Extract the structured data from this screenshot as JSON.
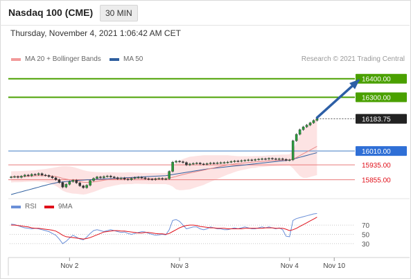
{
  "header": {
    "instrument": "Nasdaq 100 (CME)",
    "timeframe": "30 MIN"
  },
  "timestamp": "Thursday, November 4, 2021 1:06:42 AM CET",
  "legend": {
    "price": [
      {
        "label": "MA 20 + Bollinger Bands",
        "color": "#f29a9a"
      },
      {
        "label": "MA 50",
        "color": "#2f5f9f"
      }
    ],
    "rsi": [
      {
        "label": "RSI",
        "color": "#6a8fd8"
      },
      {
        "label": "9MA",
        "color": "#e0101a"
      }
    ]
  },
  "credit": "Research © 2021 Trading Central",
  "chart_data": [
    {
      "type": "candlestick",
      "ylim": [
        15760,
        16470
      ],
      "x_ticks": [
        {
          "label": "Nov 2",
          "t": 17
        },
        {
          "label": "Nov 3",
          "t": 49
        },
        {
          "label": "Nov 4",
          "t": 81
        },
        {
          "label": "Nov 10",
          "t": 94
        }
      ],
      "levels": [
        {
          "label": "16400.00",
          "value": 16400,
          "role": "target",
          "color": "#4aa000"
        },
        {
          "label": "16300.00",
          "value": 16300,
          "role": "target",
          "color": "#4aa000"
        },
        {
          "label": "16183.75",
          "value": 16183.75,
          "role": "last",
          "color": "#222222"
        },
        {
          "label": "16010.00",
          "value": 16010,
          "role": "pivot",
          "color": "#2f6fd6"
        },
        {
          "label": "15935.00",
          "value": 15935,
          "role": "support",
          "color": "#e0101a"
        },
        {
          "label": "15855.00",
          "value": 15855,
          "role": "support",
          "color": "#e0101a"
        }
      ],
      "close": [
        15870,
        15872,
        15868,
        15874,
        15880,
        15876,
        15884,
        15882,
        15888,
        15880,
        15878,
        15872,
        15865,
        15855,
        15840,
        15815,
        15830,
        15845,
        15852,
        15838,
        15822,
        15812,
        15825,
        15850,
        15862,
        15870,
        15866,
        15872,
        15875,
        15870,
        15866,
        15860,
        15864,
        15858,
        15855,
        15862,
        15866,
        15868,
        15865,
        15860,
        15858,
        15856,
        15860,
        15862,
        15858,
        15860,
        15900,
        15950,
        15955,
        15952,
        15948,
        15935,
        15940,
        15943,
        15945,
        15940,
        15938,
        15942,
        15945,
        15944,
        15946,
        15947,
        15948,
        15950,
        15953,
        15956,
        15955,
        15958,
        15960,
        15962,
        15960,
        15964,
        15966,
        15968,
        15966,
        15970,
        15968,
        15966,
        15968,
        15965,
        15960,
        15962,
        16065,
        16100,
        16125,
        16140,
        16150,
        16162,
        16175,
        16183.75
      ],
      "ma20": [
        15870,
        15871,
        15871,
        15872,
        15873,
        15874,
        15875,
        15876,
        15877,
        15877,
        15877,
        15876,
        15875,
        15872,
        15868,
        15862,
        15858,
        15855,
        15852,
        15849,
        15845,
        15841,
        15840,
        15841,
        15843,
        15846,
        15849,
        15852,
        15855,
        15857,
        15859,
        15860,
        15862,
        15862,
        15863,
        15863,
        15863,
        15863,
        15862,
        15862,
        15861,
        15861,
        15861,
        15861,
        15861,
        15861,
        15863,
        15868,
        15873,
        15878,
        15883,
        15887,
        15891,
        15895,
        15899,
        15903,
        15907,
        15911,
        15915,
        15919,
        15923,
        15927,
        15931,
        15935,
        15937,
        15940,
        15942,
        15944,
        15946,
        15948,
        15950,
        15951,
        15953,
        15954,
        15955,
        15957,
        15958,
        15959,
        15960,
        15961,
        15961,
        15962,
        15967,
        15975,
        15985,
        15995,
        16005,
        16015,
        16025,
        16035
      ],
      "bb_width": [
        30,
        30,
        30,
        30,
        30,
        30,
        30,
        30,
        32,
        34,
        36,
        40,
        44,
        50,
        58,
        66,
        70,
        72,
        72,
        70,
        68,
        66,
        62,
        58,
        54,
        50,
        46,
        42,
        40,
        38,
        36,
        34,
        32,
        32,
        32,
        32,
        30,
        30,
        30,
        30,
        30,
        30,
        30,
        30,
        30,
        30,
        36,
        50,
        70,
        80,
        84,
        86,
        88,
        86,
        84,
        82,
        80,
        76,
        72,
        68,
        64,
        60,
        56,
        52,
        48,
        44,
        40,
        38,
        36,
        34,
        32,
        32,
        30,
        30,
        30,
        30,
        30,
        30,
        30,
        30,
        30,
        30,
        50,
        80,
        110,
        130,
        140,
        145,
        150,
        155
      ],
      "ma50": [
        15775,
        15780,
        15785,
        15790,
        15795,
        15800,
        15805,
        15810,
        15815,
        15820,
        15825,
        15830,
        15834,
        15838,
        15841,
        15843,
        15845,
        15847,
        15849,
        15851,
        15852,
        15853,
        15854,
        15855,
        15856,
        15857,
        15858,
        15859,
        15860,
        15861,
        15862,
        15863,
        15864,
        15865,
        15866,
        15867,
        15868,
        15869,
        15870,
        15871,
        15872,
        15873,
        15874,
        15875,
        15876,
        15877,
        15880,
        15883,
        15886,
        15889,
        15892,
        15895,
        15898,
        15901,
        15904,
        15907,
        15910,
        15913,
        15915,
        15917,
        15919,
        15921,
        15923,
        15925,
        15927,
        15929,
        15931,
        15933,
        15935,
        15937,
        15939,
        15941,
        15943,
        15945,
        15947,
        15949,
        15951,
        15953,
        15955,
        15957,
        15959,
        15961,
        15966,
        15971,
        15976,
        15981,
        15986,
        15991,
        15996,
        16001
      ],
      "projection": {
        "from": {
          "t": 89,
          "value": 16190
        },
        "to": {
          "t": 101,
          "value": 16390
        }
      }
    },
    {
      "type": "line",
      "ylim": [
        0,
        100
      ],
      "ticks": [
        {
          "label": "70",
          "value": 70
        },
        {
          "label": "50",
          "value": 50
        },
        {
          "label": "30",
          "value": 30
        }
      ],
      "series": [
        {
          "name": "RSI",
          "values": [
            72,
            71,
            69,
            66,
            64,
            63,
            62,
            63,
            62,
            60,
            58,
            56,
            52,
            48,
            40,
            30,
            35,
            42,
            48,
            44,
            40,
            38,
            44,
            52,
            58,
            60,
            58,
            56,
            58,
            60,
            58,
            56,
            54,
            55,
            52,
            50,
            52,
            54,
            56,
            55,
            52,
            50,
            48,
            49,
            50,
            49,
            60,
            80,
            82,
            78,
            70,
            62,
            64,
            66,
            66,
            62,
            60,
            62,
            66,
            64,
            62,
            62,
            60,
            60,
            62,
            64,
            62,
            64,
            66,
            64,
            62,
            62,
            64,
            66,
            64,
            66,
            64,
            62,
            64,
            60,
            46,
            45,
            80,
            84,
            86,
            88,
            90,
            92,
            94,
            95
          ]
        },
        {
          "name": "9MA",
          "values": [
            70,
            70,
            69,
            68,
            67,
            66,
            64,
            63,
            63,
            62,
            61,
            60,
            59,
            57,
            53,
            48,
            45,
            44,
            43,
            42,
            41,
            40,
            41,
            43,
            46,
            49,
            52,
            55,
            56,
            57,
            58,
            58,
            57,
            57,
            56,
            55,
            54,
            53,
            53,
            54,
            54,
            53,
            52,
            51,
            51,
            50,
            52,
            56,
            60,
            64,
            67,
            69,
            70,
            70,
            69,
            67,
            66,
            65,
            64,
            64,
            63,
            63,
            63,
            62,
            62,
            62,
            62,
            62,
            63,
            63,
            63,
            63,
            63,
            63,
            64,
            64,
            64,
            63,
            63,
            63,
            61,
            58,
            60,
            63,
            67,
            71,
            75,
            79,
            83,
            87
          ]
        }
      ]
    }
  ]
}
